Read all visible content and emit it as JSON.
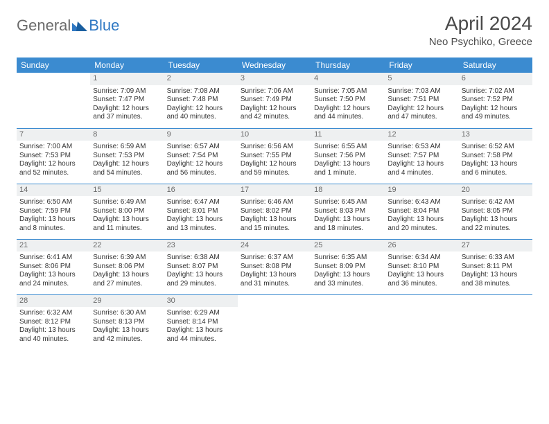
{
  "logo": {
    "general": "General",
    "blue": "Blue"
  },
  "header": {
    "month": "April 2024",
    "location": "Neo Psychiko, Greece"
  },
  "style": {
    "header_bg": "#3b8bd0",
    "header_fg": "#ffffff",
    "daybar_bg": "#eef0f1",
    "sep_color": "#3b8bd0",
    "text_color": "#333333",
    "font_family": "Arial",
    "title_fontsize": 28,
    "location_fontsize": 15,
    "dayname_fontsize": 12,
    "cell_fontsize": 10
  },
  "daynames": [
    "Sunday",
    "Monday",
    "Tuesday",
    "Wednesday",
    "Thursday",
    "Friday",
    "Saturday"
  ],
  "weeks": [
    [
      null,
      {
        "n": "1",
        "sr": "7:09 AM",
        "ss": "7:47 PM",
        "dl": "12 hours and 37 minutes."
      },
      {
        "n": "2",
        "sr": "7:08 AM",
        "ss": "7:48 PM",
        "dl": "12 hours and 40 minutes."
      },
      {
        "n": "3",
        "sr": "7:06 AM",
        "ss": "7:49 PM",
        "dl": "12 hours and 42 minutes."
      },
      {
        "n": "4",
        "sr": "7:05 AM",
        "ss": "7:50 PM",
        "dl": "12 hours and 44 minutes."
      },
      {
        "n": "5",
        "sr": "7:03 AM",
        "ss": "7:51 PM",
        "dl": "12 hours and 47 minutes."
      },
      {
        "n": "6",
        "sr": "7:02 AM",
        "ss": "7:52 PM",
        "dl": "12 hours and 49 minutes."
      }
    ],
    [
      {
        "n": "7",
        "sr": "7:00 AM",
        "ss": "7:53 PM",
        "dl": "12 hours and 52 minutes."
      },
      {
        "n": "8",
        "sr": "6:59 AM",
        "ss": "7:53 PM",
        "dl": "12 hours and 54 minutes."
      },
      {
        "n": "9",
        "sr": "6:57 AM",
        "ss": "7:54 PM",
        "dl": "12 hours and 56 minutes."
      },
      {
        "n": "10",
        "sr": "6:56 AM",
        "ss": "7:55 PM",
        "dl": "12 hours and 59 minutes."
      },
      {
        "n": "11",
        "sr": "6:55 AM",
        "ss": "7:56 PM",
        "dl": "13 hours and 1 minute."
      },
      {
        "n": "12",
        "sr": "6:53 AM",
        "ss": "7:57 PM",
        "dl": "13 hours and 4 minutes."
      },
      {
        "n": "13",
        "sr": "6:52 AM",
        "ss": "7:58 PM",
        "dl": "13 hours and 6 minutes."
      }
    ],
    [
      {
        "n": "14",
        "sr": "6:50 AM",
        "ss": "7:59 PM",
        "dl": "13 hours and 8 minutes."
      },
      {
        "n": "15",
        "sr": "6:49 AM",
        "ss": "8:00 PM",
        "dl": "13 hours and 11 minutes."
      },
      {
        "n": "16",
        "sr": "6:47 AM",
        "ss": "8:01 PM",
        "dl": "13 hours and 13 minutes."
      },
      {
        "n": "17",
        "sr": "6:46 AM",
        "ss": "8:02 PM",
        "dl": "13 hours and 15 minutes."
      },
      {
        "n": "18",
        "sr": "6:45 AM",
        "ss": "8:03 PM",
        "dl": "13 hours and 18 minutes."
      },
      {
        "n": "19",
        "sr": "6:43 AM",
        "ss": "8:04 PM",
        "dl": "13 hours and 20 minutes."
      },
      {
        "n": "20",
        "sr": "6:42 AM",
        "ss": "8:05 PM",
        "dl": "13 hours and 22 minutes."
      }
    ],
    [
      {
        "n": "21",
        "sr": "6:41 AM",
        "ss": "8:06 PM",
        "dl": "13 hours and 24 minutes."
      },
      {
        "n": "22",
        "sr": "6:39 AM",
        "ss": "8:06 PM",
        "dl": "13 hours and 27 minutes."
      },
      {
        "n": "23",
        "sr": "6:38 AM",
        "ss": "8:07 PM",
        "dl": "13 hours and 29 minutes."
      },
      {
        "n": "24",
        "sr": "6:37 AM",
        "ss": "8:08 PM",
        "dl": "13 hours and 31 minutes."
      },
      {
        "n": "25",
        "sr": "6:35 AM",
        "ss": "8:09 PM",
        "dl": "13 hours and 33 minutes."
      },
      {
        "n": "26",
        "sr": "6:34 AM",
        "ss": "8:10 PM",
        "dl": "13 hours and 36 minutes."
      },
      {
        "n": "27",
        "sr": "6:33 AM",
        "ss": "8:11 PM",
        "dl": "13 hours and 38 minutes."
      }
    ],
    [
      {
        "n": "28",
        "sr": "6:32 AM",
        "ss": "8:12 PM",
        "dl": "13 hours and 40 minutes."
      },
      {
        "n": "29",
        "sr": "6:30 AM",
        "ss": "8:13 PM",
        "dl": "13 hours and 42 minutes."
      },
      {
        "n": "30",
        "sr": "6:29 AM",
        "ss": "8:14 PM",
        "dl": "13 hours and 44 minutes."
      },
      null,
      null,
      null,
      null
    ]
  ],
  "labels": {
    "sunrise": "Sunrise:",
    "sunset": "Sunset:",
    "daylight": "Daylight:"
  }
}
